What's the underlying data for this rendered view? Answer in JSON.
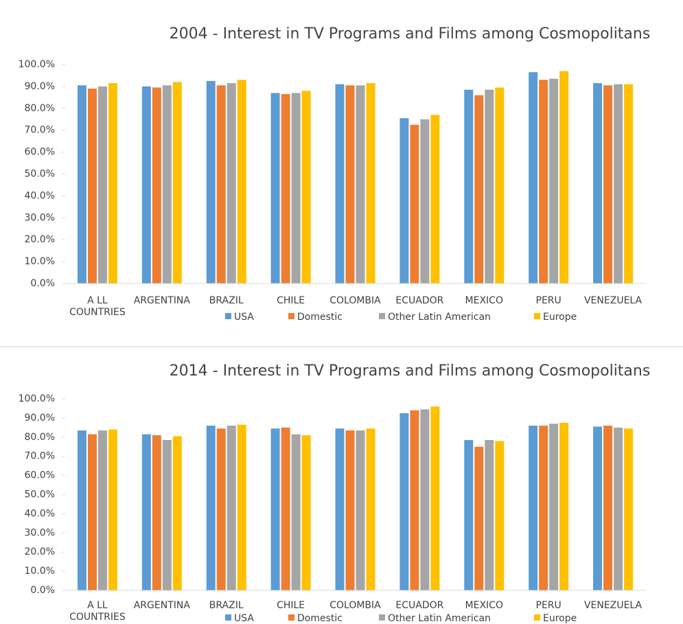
{
  "chart_data": [
    {
      "type": "bar",
      "title": "2004 - Interest in TV Programs and Films among Cosmopolitans",
      "categories": [
        "A LL COUNTRIES",
        "ARGENTINA",
        "BRAZIL",
        "CHILE",
        "COLOMBIA",
        "ECUADOR",
        "MEXICO",
        "PERU",
        "VENEZUELA"
      ],
      "series": [
        {
          "name": "USA",
          "color": "#5b9bd5",
          "values": [
            90.5,
            90,
            92.5,
            87,
            91,
            75.5,
            88.5,
            96.5,
            91.5
          ]
        },
        {
          "name": "Domestic",
          "color": "#ed7d31",
          "values": [
            89,
            89.5,
            90.5,
            86.5,
            90.5,
            72.5,
            86,
            93,
            90.5
          ]
        },
        {
          "name": "Other Latin American",
          "color": "#a5a5a5",
          "values": [
            90,
            90.5,
            91.5,
            87,
            90.5,
            75,
            88.5,
            93.5,
            91
          ]
        },
        {
          "name": "Europe",
          "color": "#ffc000",
          "values": [
            91.5,
            92,
            93,
            88,
            91.5,
            77,
            89.5,
            97,
            91
          ]
        }
      ],
      "ylim": [
        0,
        100
      ],
      "yticks": [
        {
          "value": 0,
          "label": "0.0%"
        },
        {
          "value": 10,
          "label": "10.0%"
        },
        {
          "value": 20,
          "label": "20.0%"
        },
        {
          "value": 30,
          "label": "30.0%"
        },
        {
          "value": 40,
          "label": "40.0%"
        },
        {
          "value": 50,
          "label": "50.0%"
        },
        {
          "value": 60,
          "label": "60.0%"
        },
        {
          "value": 70,
          "label": "70.0%"
        },
        {
          "value": 80,
          "label": "80.0%"
        },
        {
          "value": 90,
          "label": "90.0%"
        },
        {
          "value": 100,
          "label": "100.0%"
        }
      ],
      "legend": "bottom"
    },
    {
      "type": "bar",
      "title": "2014 - Interest in TV Programs and Films among Cosmopolitans",
      "categories": [
        "A LL COUNTRIES",
        "ARGENTINA",
        "BRAZIL",
        "CHILE",
        "COLOMBIA",
        "ECUADOR",
        "MEXICO",
        "PERU",
        "VENEZUELA"
      ],
      "series": [
        {
          "name": "USA",
          "color": "#5b9bd5",
          "values": [
            83.5,
            81.5,
            86,
            84.5,
            84.5,
            92.5,
            78.5,
            86,
            85.5
          ]
        },
        {
          "name": "Domestic",
          "color": "#ed7d31",
          "values": [
            81.5,
            81,
            84.5,
            85,
            83.5,
            94,
            75,
            86,
            86
          ]
        },
        {
          "name": "Other Latin American",
          "color": "#a5a5a5",
          "values": [
            83.5,
            78.5,
            86,
            81.5,
            83.5,
            94.5,
            78.5,
            87,
            85
          ]
        },
        {
          "name": "Europe",
          "color": "#ffc000",
          "values": [
            84,
            80.5,
            86.5,
            81,
            84.5,
            96,
            78,
            87.5,
            84.5
          ]
        }
      ],
      "ylim": [
        0,
        100
      ],
      "yticks": [
        {
          "value": 0,
          "label": "0.0%"
        },
        {
          "value": 10,
          "label": "10.0%"
        },
        {
          "value": 20,
          "label": "20.0%"
        },
        {
          "value": 30,
          "label": "30.0%"
        },
        {
          "value": 40,
          "label": "40.0%"
        },
        {
          "value": 50,
          "label": "50.0%"
        },
        {
          "value": 60,
          "label": "60.0%"
        },
        {
          "value": 70,
          "label": "70.0%"
        },
        {
          "value": 80,
          "label": "80.0%"
        },
        {
          "value": 90,
          "label": "90.0%"
        },
        {
          "value": 100,
          "label": "100.0%"
        }
      ],
      "legend": "bottom"
    }
  ]
}
